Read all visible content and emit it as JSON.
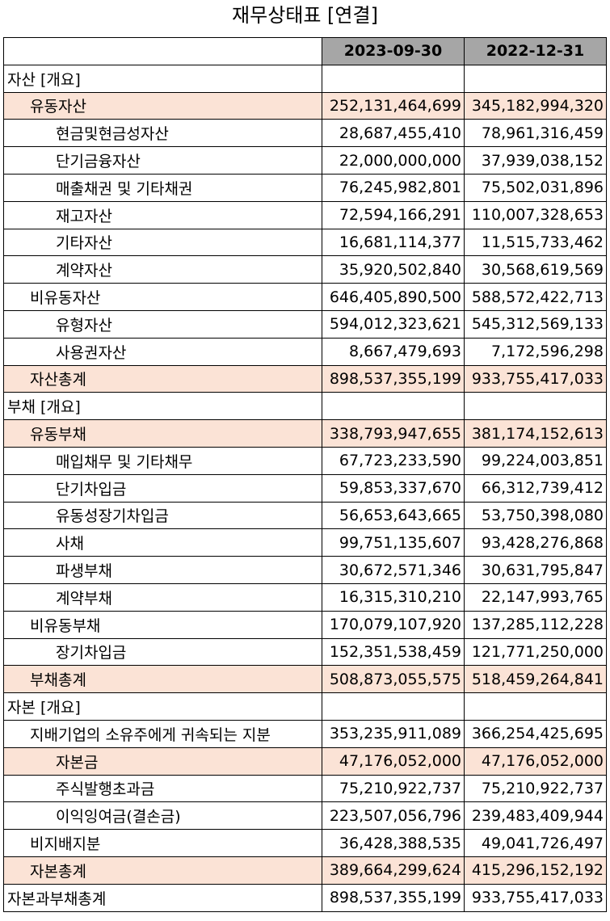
{
  "title": "재무상태표 [연결]",
  "columns": [
    "2023-09-30",
    "2022-12-31"
  ],
  "rows": [
    {
      "label": "자산 [개요]",
      "level": 0,
      "highlight": false,
      "v1": "",
      "v2": ""
    },
    {
      "label": "유동자산",
      "level": 1,
      "highlight": true,
      "v1": "252,131,464,699",
      "v2": "345,182,994,320"
    },
    {
      "label": "현금및현금성자산",
      "level": 2,
      "highlight": false,
      "v1": "28,687,455,410",
      "v2": "78,961,316,459"
    },
    {
      "label": "단기금융자산",
      "level": 2,
      "highlight": false,
      "v1": "22,000,000,000",
      "v2": "37,939,038,152"
    },
    {
      "label": "매출채권 및 기타채권",
      "level": 2,
      "highlight": false,
      "v1": "76,245,982,801",
      "v2": "75,502,031,896"
    },
    {
      "label": "재고자산",
      "level": 2,
      "highlight": false,
      "v1": "72,594,166,291",
      "v2": "110,007,328,653"
    },
    {
      "label": "기타자산",
      "level": 2,
      "highlight": false,
      "v1": "16,681,114,377",
      "v2": "11,515,733,462"
    },
    {
      "label": "계약자산",
      "level": 2,
      "highlight": false,
      "v1": "35,920,502,840",
      "v2": "30,568,619,569"
    },
    {
      "label": "비유동자산",
      "level": 1,
      "highlight": false,
      "v1": "646,405,890,500",
      "v2": "588,572,422,713"
    },
    {
      "label": "유형자산",
      "level": 2,
      "highlight": false,
      "v1": "594,012,323,621",
      "v2": "545,312,569,133"
    },
    {
      "label": "사용권자산",
      "level": 2,
      "highlight": false,
      "v1": "8,667,479,693",
      "v2": "7,172,596,298"
    },
    {
      "label": "자산총계",
      "level": 1,
      "highlight": true,
      "v1": "898,537,355,199",
      "v2": "933,755,417,033"
    },
    {
      "label": "부채 [개요]",
      "level": 0,
      "highlight": false,
      "v1": "",
      "v2": ""
    },
    {
      "label": "유동부채",
      "level": 1,
      "highlight": true,
      "v1": "338,793,947,655",
      "v2": "381,174,152,613"
    },
    {
      "label": "매입채무 및 기타채무",
      "level": 2,
      "highlight": false,
      "v1": "67,723,233,590",
      "v2": "99,224,003,851"
    },
    {
      "label": "단기차입금",
      "level": 2,
      "highlight": false,
      "v1": "59,853,337,670",
      "v2": "66,312,739,412"
    },
    {
      "label": "유동성장기차입금",
      "level": 2,
      "highlight": false,
      "v1": "56,653,643,665",
      "v2": "53,750,398,080"
    },
    {
      "label": "사채",
      "level": 2,
      "highlight": false,
      "v1": "99,751,135,607",
      "v2": "93,428,276,868"
    },
    {
      "label": "파생부채",
      "level": 2,
      "highlight": false,
      "v1": "30,672,571,346",
      "v2": "30,631,795,847"
    },
    {
      "label": "계약부채",
      "level": 2,
      "highlight": false,
      "v1": "16,315,310,210",
      "v2": "22,147,993,765"
    },
    {
      "label": "비유동부채",
      "level": 1,
      "highlight": false,
      "v1": "170,079,107,920",
      "v2": "137,285,112,228"
    },
    {
      "label": "장기차입금",
      "level": 2,
      "highlight": false,
      "v1": "152,351,538,459",
      "v2": "121,771,250,000"
    },
    {
      "label": "부채총계",
      "level": 1,
      "highlight": true,
      "v1": "508,873,055,575",
      "v2": "518,459,264,841"
    },
    {
      "label": "자본 [개요]",
      "level": 0,
      "highlight": false,
      "v1": "",
      "v2": ""
    },
    {
      "label": "지배기업의 소유주에게 귀속되는 지분",
      "level": 1,
      "highlight": false,
      "v1": "353,235,911,089",
      "v2": "366,254,425,695"
    },
    {
      "label": "자본금",
      "level": 2,
      "highlight": true,
      "v1": "47,176,052,000",
      "v2": "47,176,052,000"
    },
    {
      "label": "주식발행초과금",
      "level": 2,
      "highlight": false,
      "v1": "75,210,922,737",
      "v2": "75,210,922,737"
    },
    {
      "label": "이익잉여금(결손금)",
      "level": 2,
      "highlight": false,
      "v1": "223,507,056,796",
      "v2": "239,483,409,944"
    },
    {
      "label": "비지배지분",
      "level": 1,
      "highlight": false,
      "v1": "36,428,388,535",
      "v2": "49,041,726,497"
    },
    {
      "label": "자본총계",
      "level": 1,
      "highlight": true,
      "v1": "389,664,299,624",
      "v2": "415,296,152,192"
    },
    {
      "label": "자본과부채총계",
      "level": 0,
      "highlight": false,
      "v1": "898,537,355,199",
      "v2": "933,755,417,033"
    }
  ]
}
